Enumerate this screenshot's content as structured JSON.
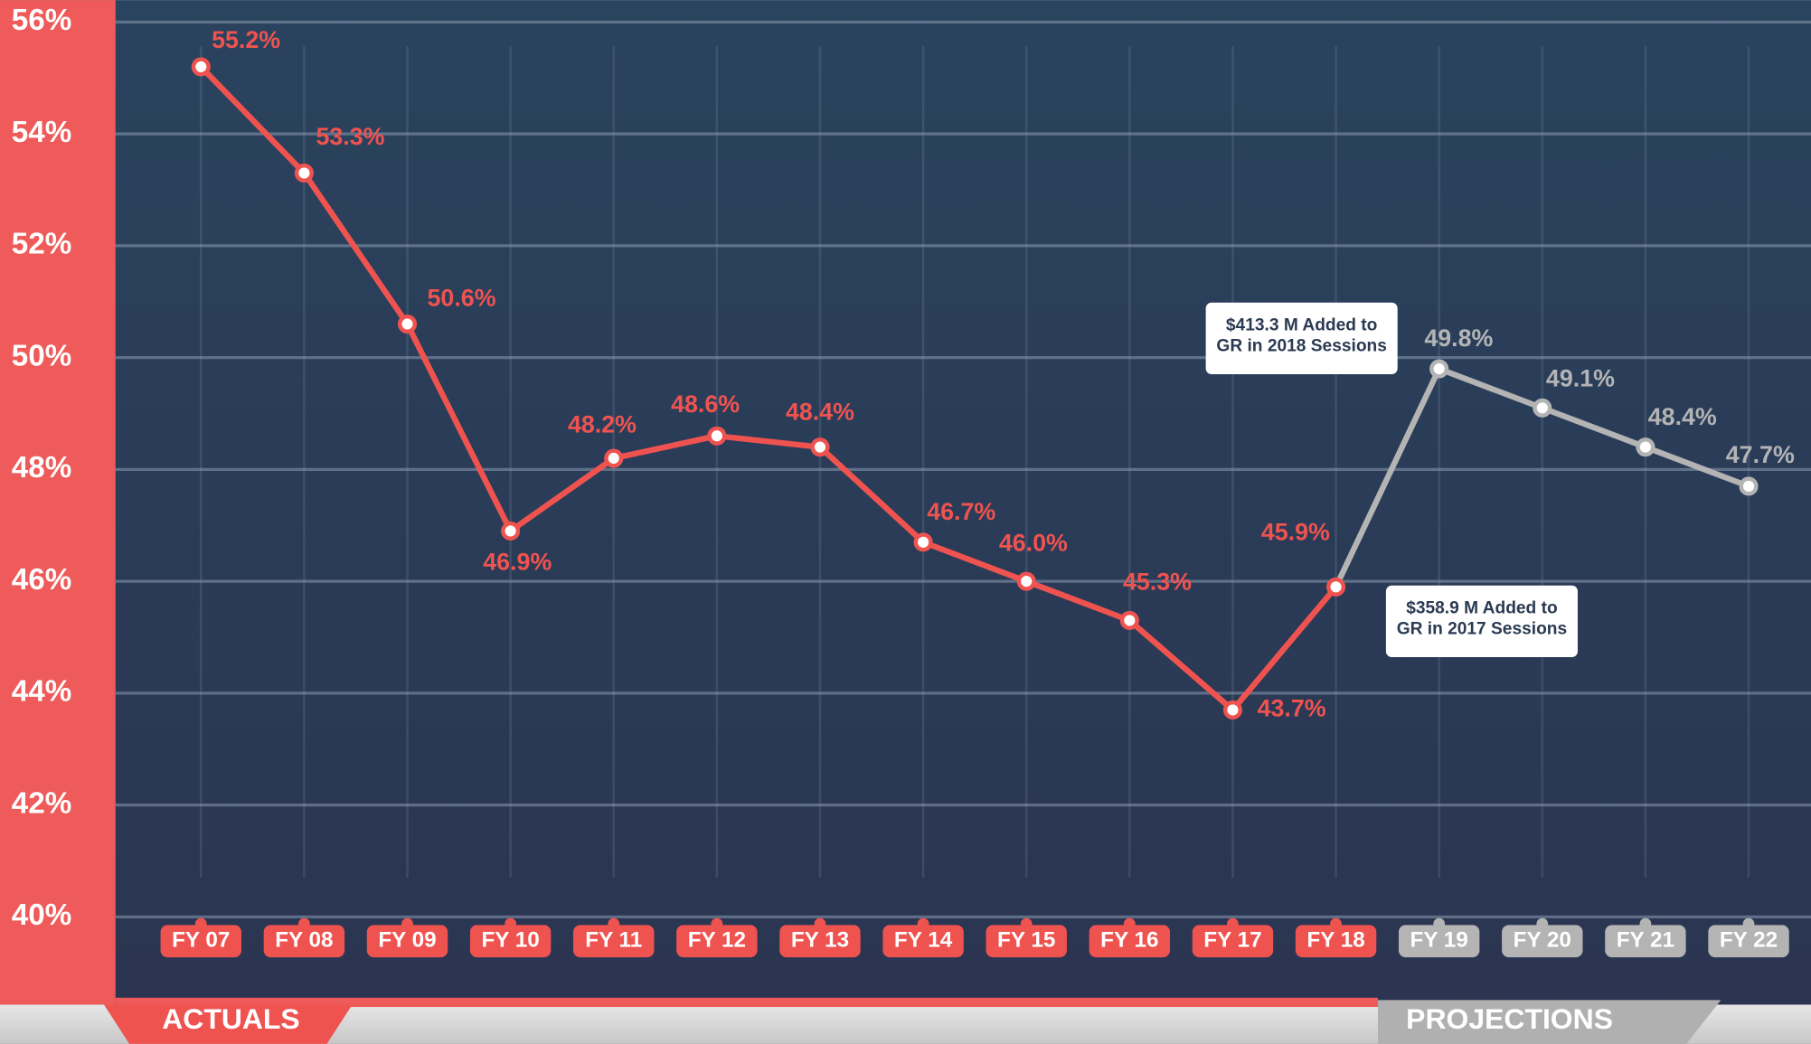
{
  "chart_data": {
    "type": "line",
    "categories": [
      "FY 07",
      "FY 08",
      "FY 09",
      "FY 10",
      "FY 11",
      "FY 12",
      "FY 13",
      "FY 14",
      "FY 15",
      "FY 16",
      "FY 17",
      "FY 18",
      "FY 19",
      "FY 20",
      "FY 21",
      "FY 22"
    ],
    "series": [
      {
        "name": "ACTUALS",
        "color": "#ef5350",
        "values": [
          55.2,
          53.3,
          50.6,
          46.9,
          48.2,
          48.6,
          48.4,
          46.7,
          46.0,
          45.3,
          43.7,
          45.9,
          null,
          null,
          null,
          null
        ],
        "value_labels": [
          "55.2%",
          "53.3%",
          "50.6%",
          "46.9%",
          "48.2%",
          "48.6%",
          "48.4%",
          "46.7%",
          "46.0%",
          "45.3%",
          "43.7%",
          "45.9%",
          null,
          null,
          null,
          null
        ]
      },
      {
        "name": "PROJECTIONS",
        "color": "#b4b4b4",
        "values": [
          null,
          null,
          null,
          null,
          null,
          null,
          null,
          null,
          null,
          null,
          null,
          45.9,
          49.8,
          49.1,
          48.4,
          47.7
        ],
        "value_labels": [
          null,
          null,
          null,
          null,
          null,
          null,
          null,
          null,
          null,
          null,
          null,
          null,
          "49.8%",
          "49.1%",
          "48.4%",
          "47.7%"
        ]
      }
    ],
    "ylim": [
      40,
      56
    ],
    "yticks": [
      {
        "value": 40,
        "label": "40%"
      },
      {
        "value": 42,
        "label": "42%"
      },
      {
        "value": 44,
        "label": "44%"
      },
      {
        "value": 46,
        "label": "46%"
      },
      {
        "value": 48,
        "label": "48%"
      },
      {
        "value": 50,
        "label": "50%"
      },
      {
        "value": 52,
        "label": "52%"
      },
      {
        "value": 54,
        "label": "54%"
      },
      {
        "value": 56,
        "label": "56%"
      }
    ],
    "grid": true,
    "annotations": [
      {
        "lines": [
          "$413.3 M Added to",
          "GR in 2018 Sessions"
        ]
      },
      {
        "lines": [
          "$358.9 M Added to",
          "GR in 2017 Sessions"
        ]
      }
    ]
  }
}
